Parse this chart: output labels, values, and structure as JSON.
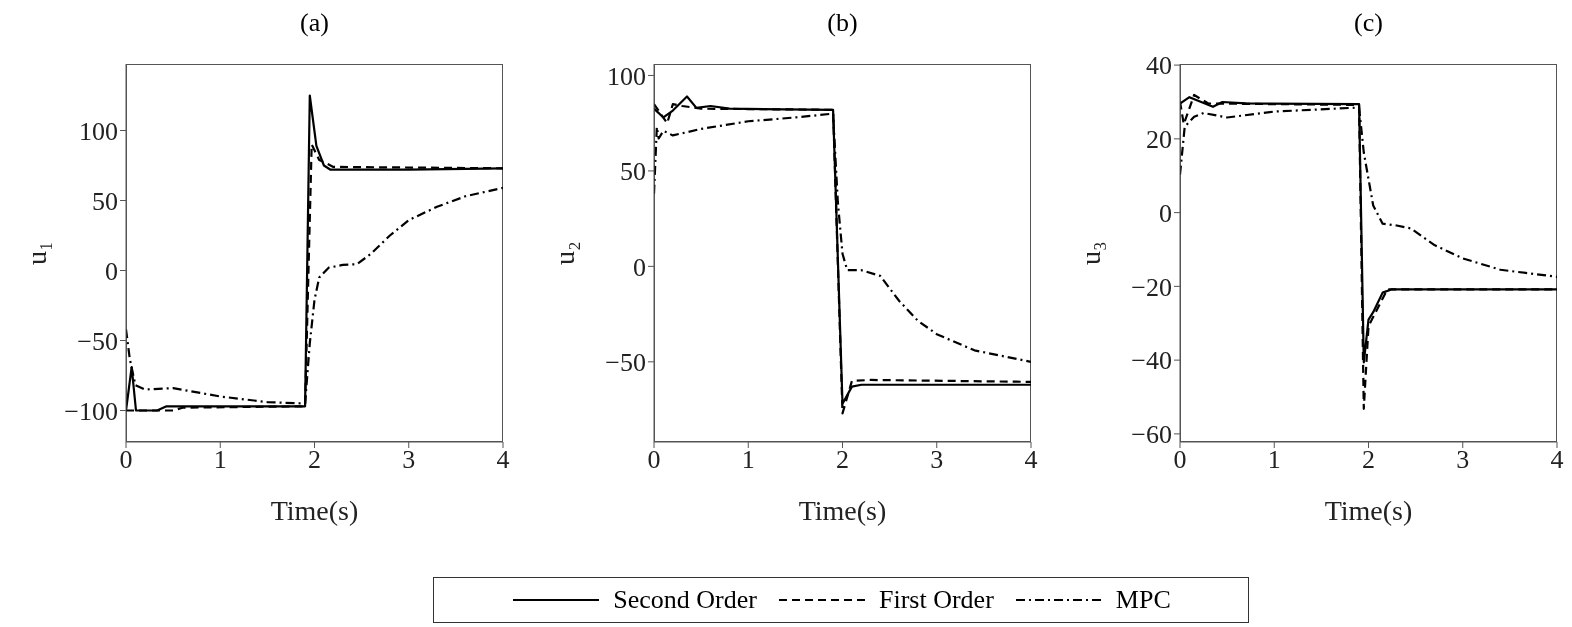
{
  "chart_data": [
    {
      "type": "line",
      "title": "(a)",
      "xlabel": "Time(s)",
      "ylabel": "u₁",
      "xlim": [
        0,
        4
      ],
      "xticks": [
        0,
        1,
        2,
        3,
        4
      ],
      "ylim": [
        -122.5,
        147.5
      ],
      "yticks": [
        -100,
        -50,
        0,
        50,
        100
      ],
      "grid": false,
      "legend": "bottom",
      "series": [
        {
          "name": "Second Order",
          "color": "#000000",
          "line_style": "solid",
          "x": [
            0,
            0.06,
            0.106,
            0.33,
            0.43,
            1.9,
            1.95,
            2.02,
            2.1,
            2.17,
            3,
            4
          ],
          "values": [
            -100,
            -69,
            -100,
            -100,
            -97,
            -97,
            125,
            89,
            75,
            72,
            72,
            73
          ]
        },
        {
          "name": "First Order",
          "color": "#000000",
          "line_style": "dashed",
          "x": [
            0,
            0.1,
            0.5,
            0.6,
            1.9,
            1.97,
            2.05,
            2.2,
            4
          ],
          "values": [
            -100,
            -100,
            -100,
            -98,
            -97,
            90,
            79,
            74,
            73
          ]
        },
        {
          "name": "MPC",
          "color": "#000000",
          "line_style": "dashdot",
          "x": [
            0,
            0.04,
            0.1,
            0.2,
            0.5,
            1,
            1.5,
            1.9,
            1.95,
            2,
            2.05,
            2.15,
            2.3,
            2.45,
            2.6,
            2.8,
            3,
            3.3,
            3.6,
            4
          ],
          "values": [
            -42,
            -63,
            -82,
            -85,
            -84,
            -90,
            -94,
            -95,
            -52,
            -21,
            -5,
            2,
            4,
            4.5,
            12,
            25,
            36,
            45.5,
            53,
            59
          ]
        }
      ]
    },
    {
      "type": "line",
      "title": "(b)",
      "xlabel": "Time(s)",
      "ylabel": "u₂",
      "xlim": [
        0,
        4
      ],
      "xticks": [
        0,
        1,
        2,
        3,
        4
      ],
      "ylim": [
        -92,
        106
      ],
      "yticks": [
        -50,
        0,
        50,
        100
      ],
      "grid": false,
      "legend": "bottom",
      "series": [
        {
          "name": "Second Order",
          "color": "#000000",
          "line_style": "solid",
          "x": [
            0,
            0.1,
            0.2,
            0.35,
            0.45,
            0.6,
            0.8,
            1.9,
            2,
            2.1,
            2.2,
            4
          ],
          "values": [
            82.6,
            78,
            81.6,
            89,
            83,
            84,
            82.6,
            82,
            -72,
            -63,
            -62,
            -62
          ]
        },
        {
          "name": "First Order",
          "color": "#000000",
          "line_style": "dashed",
          "x": [
            0,
            0.14,
            0.2,
            0.3,
            0.5,
            1.9,
            2,
            2.1,
            2.3,
            4
          ],
          "values": [
            85,
            75,
            85,
            84,
            82.6,
            82,
            -77,
            -60,
            -59.5,
            -60.5
          ]
        },
        {
          "name": "MPC",
          "color": "#000000",
          "line_style": "dashdot",
          "x": [
            0,
            0.03,
            0.05,
            0.1,
            0.2,
            0.5,
            1,
            1.5,
            1.9,
            1.95,
            2,
            2.05,
            2.2,
            2.4,
            2.6,
            2.8,
            3,
            3.4,
            4
          ],
          "values": [
            38,
            73,
            67,
            71,
            68.6,
            72,
            76,
            78,
            80,
            34,
            6.6,
            -2,
            -2,
            -5,
            -18,
            -28.5,
            -35.5,
            -44,
            -50
          ]
        }
      ]
    },
    {
      "type": "line",
      "title": "(c)",
      "xlabel": "Time(s)",
      "ylabel": "u₃",
      "xlim": [
        0,
        4
      ],
      "xticks": [
        0,
        1,
        2,
        3,
        4
      ],
      "ylim": [
        -62.2,
        40.3
      ],
      "yticks": [
        -60,
        -40,
        -20,
        0,
        20,
        40
      ],
      "grid": false,
      "legend": "bottom",
      "series": [
        {
          "name": "Second Order",
          "color": "#000000",
          "line_style": "solid",
          "x": [
            0,
            0.1,
            0.35,
            0.45,
            0.7,
            1.9,
            1.95,
            2,
            2.05,
            2.15,
            2.25,
            4
          ],
          "values": [
            29.6,
            31.3,
            28.7,
            30,
            29.6,
            29.4,
            -40.6,
            -29,
            -27,
            -21.7,
            -20.8,
            -20.8
          ]
        },
        {
          "name": "First Order",
          "color": "#000000",
          "line_style": "dashed",
          "x": [
            0,
            0.04,
            0.15,
            0.3,
            1.9,
            1.95,
            2,
            2.2,
            4
          ],
          "values": [
            30.1,
            24,
            31.9,
            29.6,
            29.2,
            -53.2,
            -30.8,
            -20.8,
            -20.8
          ]
        },
        {
          "name": "MPC",
          "color": "#000000",
          "line_style": "dashdot",
          "x": [
            0,
            0.05,
            0.15,
            0.25,
            0.5,
            1,
            1.9,
            1.95,
            2.05,
            2.15,
            2.3,
            2.45,
            2.7,
            3,
            3.4,
            4
          ],
          "values": [
            10.3,
            23.3,
            26,
            27,
            25.8,
            27.4,
            28.5,
            16.3,
            1.9,
            -3,
            -3.5,
            -4.3,
            -8.8,
            -12.4,
            -15.5,
            -17.4
          ]
        }
      ]
    }
  ]
}
